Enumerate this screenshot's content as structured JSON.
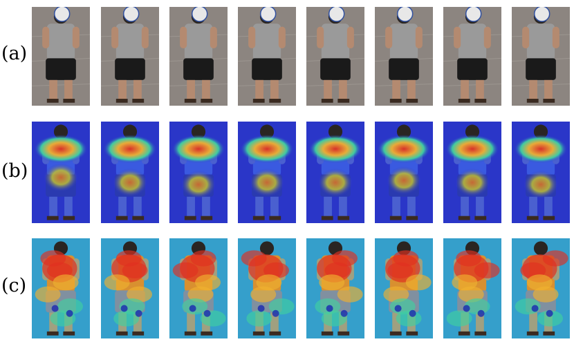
{
  "rows": [
    {
      "label": "(a)",
      "kind": "photo"
    },
    {
      "label": "(b)",
      "kind": "heatmap-coarse"
    },
    {
      "label": "(c)",
      "kind": "heatmap-fine"
    }
  ],
  "columns": 8,
  "colors": {
    "shirt": "#9a9a9a",
    "shorts": "#1a1a1a",
    "skin": "#b48a70",
    "pavement": "#8c8580",
    "face_disk": "#e8e8e8",
    "face_border": "#3050a0",
    "heat_low": "#2a36c8",
    "heat_mid": "#40d0a0",
    "heat_high": "#e03020"
  }
}
